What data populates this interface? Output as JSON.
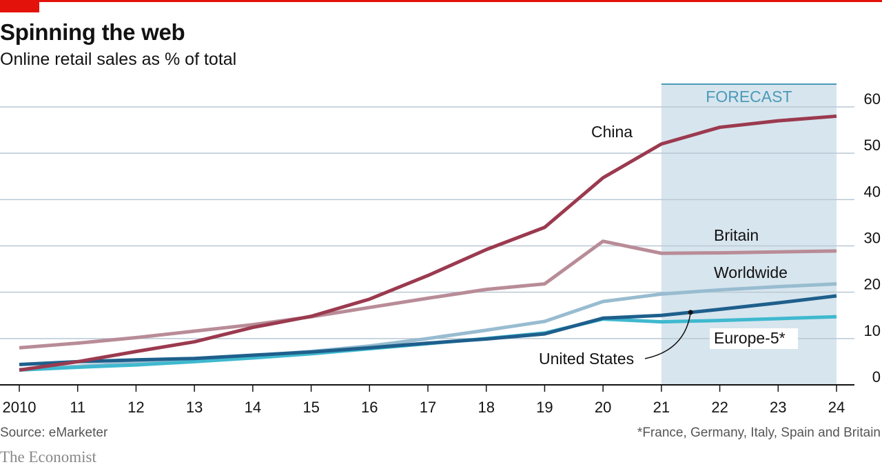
{
  "header": {
    "title": "Spinning the web",
    "subtitle": "Online retail sales as % of total"
  },
  "footer": {
    "source": "Source: eMarketer",
    "footnote": "*France, Germany, Italy, Spain and Britain",
    "brand": "The Economist"
  },
  "chart_data": {
    "type": "line",
    "x": [
      2010,
      2011,
      2012,
      2013,
      2014,
      2015,
      2016,
      2017,
      2018,
      2019,
      2020,
      2021,
      2022,
      2023,
      2024
    ],
    "x_tick_labels": [
      "2010",
      "11",
      "12",
      "13",
      "14",
      "15",
      "16",
      "17",
      "18",
      "19",
      "20",
      "21",
      "22",
      "23",
      "24"
    ],
    "ylim": [
      0,
      60
    ],
    "y_ticks": [
      0,
      10,
      20,
      30,
      40,
      50,
      60
    ],
    "y_axis_side": "right",
    "grid": true,
    "forecast": {
      "label": "FORECAST",
      "from": 2021,
      "to": 2024,
      "color": "#d7e5ee"
    },
    "series": [
      {
        "name": "China",
        "color": "#9b3a4f",
        "values": [
          3.2,
          5.0,
          7.2,
          9.3,
          12.4,
          14.8,
          18.5,
          23.6,
          29.2,
          34.0,
          44.7,
          52.0,
          55.6,
          57.0,
          58.0
        ]
      },
      {
        "name": "Britain",
        "color": "#b88c97",
        "values": [
          8.0,
          9.0,
          10.2,
          11.6,
          13.0,
          14.7,
          16.7,
          18.7,
          20.6,
          21.8,
          31.0,
          28.4,
          28.5,
          28.7,
          28.9
        ]
      },
      {
        "name": "Worldwide",
        "color": "#98bcd0",
        "values": [
          3.3,
          4.0,
          4.8,
          5.6,
          6.3,
          7.2,
          8.4,
          10.0,
          11.8,
          13.7,
          18.0,
          19.6,
          20.5,
          21.2,
          21.8
        ]
      },
      {
        "name": "United States",
        "color": "#1e5f8c",
        "values": [
          4.4,
          5.0,
          5.4,
          5.7,
          6.4,
          7.1,
          8.0,
          9.0,
          9.9,
          11.0,
          14.4,
          15.0,
          16.3,
          17.7,
          19.2
        ]
      },
      {
        "name": "Europe-5*",
        "color": "#3fb9cf",
        "values": [
          3.2,
          3.8,
          4.3,
          5.0,
          5.8,
          6.7,
          7.8,
          8.9,
          10.0,
          11.2,
          14.2,
          13.6,
          13.9,
          14.3,
          14.7
        ]
      }
    ]
  }
}
